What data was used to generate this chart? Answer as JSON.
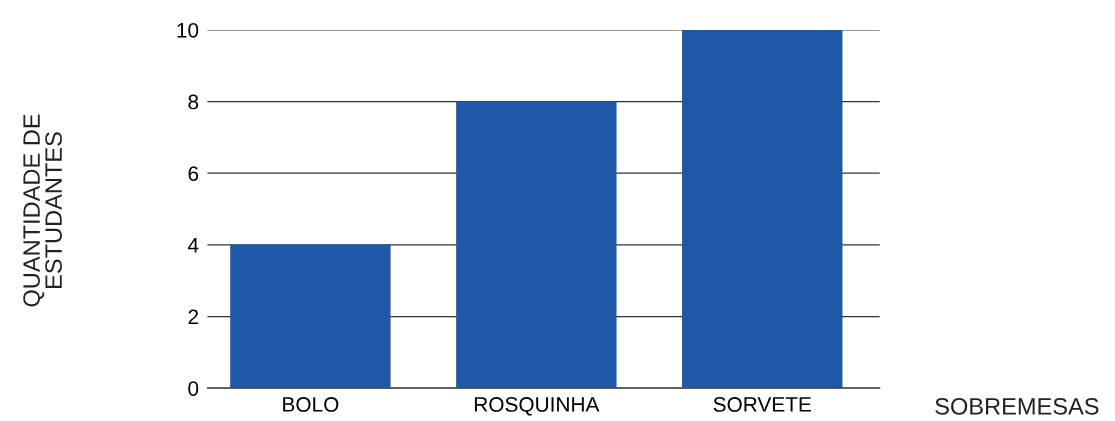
{
  "chart_data": {
    "type": "bar",
    "xlabel": "SOBREMESAS",
    "ylabel": "QUANTIDADE DE\nESTUDANTES",
    "categories": [
      "BOLO",
      "ROSQUINHA",
      "SORVETE"
    ],
    "values": [
      4,
      8,
      10
    ],
    "color": "#1f58a7",
    "ylim": [
      0,
      10
    ],
    "yticks": [
      0,
      2,
      4,
      6,
      8,
      10
    ],
    "grid": "y",
    "legend": false
  }
}
